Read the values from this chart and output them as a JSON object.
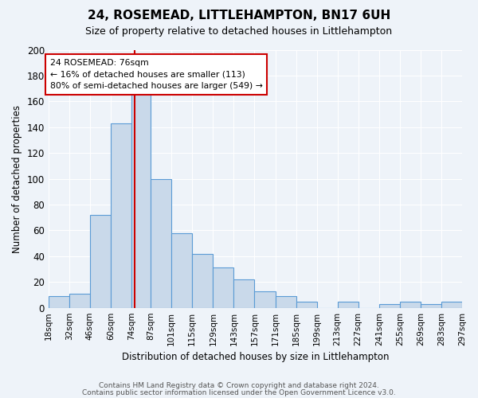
{
  "title": "24, ROSEMEAD, LITTLEHAMPTON, BN17 6UH",
  "subtitle": "Size of property relative to detached houses in Littlehampton",
  "xlabel": "Distribution of detached houses by size in Littlehampton",
  "ylabel": "Number of detached properties",
  "bin_edges": [
    18,
    32,
    46,
    60,
    74,
    87,
    101,
    115,
    129,
    143,
    157,
    171,
    185,
    199,
    213,
    227,
    241,
    255,
    269,
    283,
    297
  ],
  "bar_heights": [
    9,
    11,
    72,
    143,
    168,
    100,
    58,
    42,
    31,
    22,
    13,
    9,
    5,
    0,
    5,
    0,
    3,
    5,
    3,
    5
  ],
  "bar_facecolor": "#c9d9ea",
  "bar_edgecolor": "#5b9bd5",
  "ylim": [
    0,
    200
  ],
  "yticks": [
    0,
    20,
    40,
    60,
    80,
    100,
    120,
    140,
    160,
    180,
    200
  ],
  "property_line_x": 76,
  "property_line_color": "#cc0000",
  "annotation_line1": "24 ROSEMEAD: 76sqm",
  "annotation_line2": "← 16% of detached houses are smaller (113)",
  "annotation_line3": "80% of semi-detached houses are larger (549) →",
  "annotation_box_edgecolor": "#cc0000",
  "annotation_box_facecolor": "#ffffff",
  "background_color": "#eef3f9",
  "grid_color": "#ffffff",
  "footer_line1": "Contains HM Land Registry data © Crown copyright and database right 2024.",
  "footer_line2": "Contains public sector information licensed under the Open Government Licence v3.0.",
  "x_tick_labels": [
    "18sqm",
    "32sqm",
    "46sqm",
    "60sqm",
    "74sqm",
    "87sqm",
    "101sqm",
    "115sqm",
    "129sqm",
    "143sqm",
    "157sqm",
    "171sqm",
    "185sqm",
    "199sqm",
    "213sqm",
    "227sqm",
    "241sqm",
    "255sqm",
    "269sqm",
    "283sqm",
    "297sqm"
  ]
}
